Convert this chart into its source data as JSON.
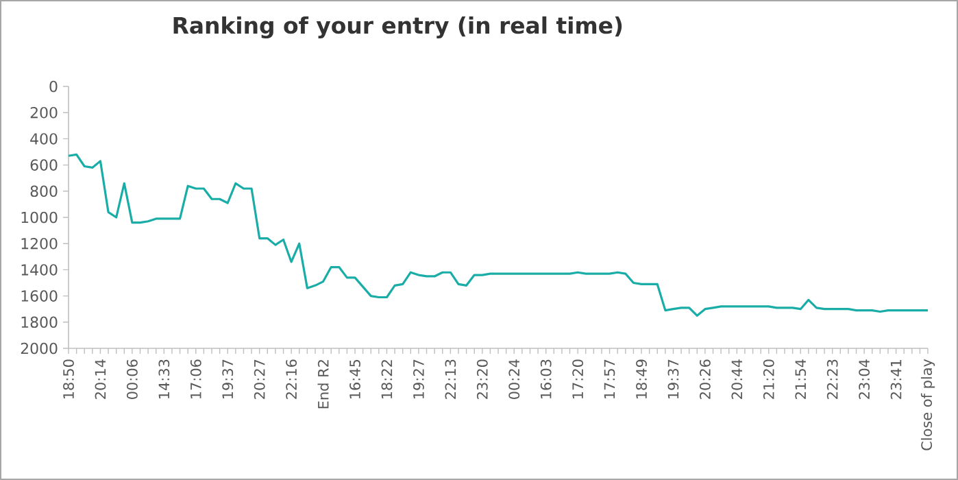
{
  "chart_data": {
    "type": "line",
    "title": "Ranking of your entry (in real time)",
    "categories": [
      "18:50",
      null,
      null,
      null,
      "20:14",
      null,
      null,
      null,
      "00:06",
      null,
      null,
      null,
      "14:33",
      null,
      null,
      null,
      "17:06",
      null,
      null,
      null,
      "19:37",
      null,
      null,
      null,
      "20:27",
      null,
      null,
      null,
      "22:16",
      null,
      null,
      null,
      "End R2",
      null,
      null,
      null,
      "16:45",
      null,
      null,
      null,
      "18:22",
      null,
      null,
      null,
      "19:27",
      null,
      null,
      null,
      "22:13",
      null,
      null,
      null,
      "23:20",
      null,
      null,
      null,
      "00:24",
      null,
      null,
      null,
      "16:03",
      null,
      null,
      null,
      "17:20",
      null,
      null,
      null,
      "17:57",
      null,
      null,
      null,
      "18:49",
      null,
      null,
      null,
      "19:37",
      null,
      null,
      null,
      "20:26",
      null,
      null,
      null,
      "20:44",
      null,
      null,
      null,
      "21:20",
      null,
      null,
      null,
      "21:54",
      null,
      null,
      null,
      "22:23",
      null,
      null,
      null,
      "23:04",
      null,
      null,
      null,
      "23:41",
      null,
      null,
      null,
      "Close of play"
    ],
    "series": [
      {
        "color": "#1aada8",
        "values": [
          530,
          520,
          610,
          620,
          570,
          960,
          1000,
          740,
          1040,
          1040,
          1030,
          1010,
          1010,
          1010,
          1010,
          760,
          780,
          780,
          860,
          860,
          890,
          740,
          780,
          780,
          1160,
          1160,
          1210,
          1170,
          1340,
          1200,
          1540,
          1520,
          1490,
          1380,
          1380,
          1460,
          1460,
          1530,
          1600,
          1610,
          1610,
          1520,
          1510,
          1420,
          1440,
          1450,
          1450,
          1420,
          1420,
          1510,
          1520,
          1440,
          1440,
          1430,
          1430,
          1430,
          1430,
          1430,
          1430,
          1430,
          1430,
          1430,
          1430,
          1430,
          1420,
          1430,
          1430,
          1430,
          1430,
          1420,
          1430,
          1500,
          1510,
          1510,
          1510,
          1710,
          1700,
          1690,
          1690,
          1750,
          1700,
          1690,
          1680,
          1680,
          1680,
          1680,
          1680,
          1680,
          1680,
          1690,
          1690,
          1690,
          1700,
          1630,
          1690,
          1700,
          1700,
          1700,
          1700,
          1710,
          1710,
          1710,
          1720,
          1710,
          1710,
          1710,
          1710,
          1710,
          1710
        ]
      }
    ],
    "ylim": [
      2000,
      0
    ],
    "yticks": [
      0,
      200,
      400,
      600,
      800,
      1000,
      1200,
      1400,
      1600,
      1800,
      2000
    ],
    "marker": "none",
    "line_style": "solid"
  }
}
